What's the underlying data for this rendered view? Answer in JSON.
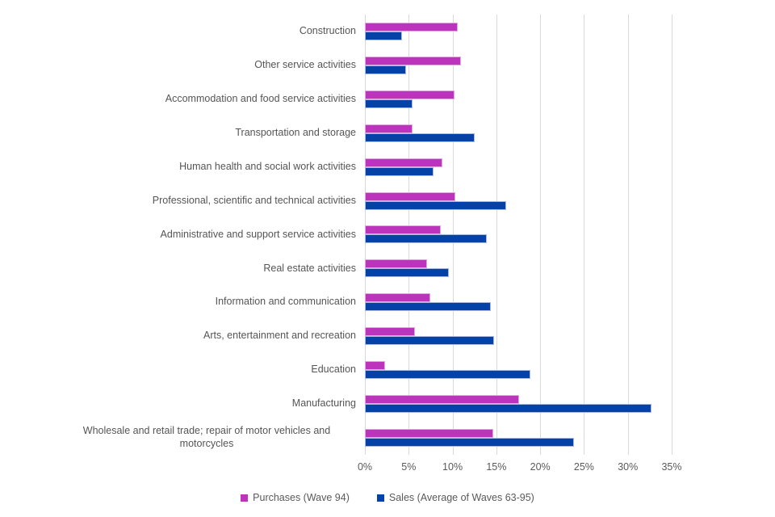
{
  "chart_data": {
    "type": "bar",
    "orientation": "horizontal",
    "title": "",
    "xlabel": "",
    "ylabel": "",
    "xlim": [
      0,
      35
    ],
    "grid": true,
    "legend_position": "bottom",
    "tick_values": [
      0,
      5,
      10,
      15,
      20,
      25,
      30,
      35
    ],
    "tick_labels": [
      "0%",
      "5%",
      "10%",
      "15%",
      "20%",
      "25%",
      "30%",
      "35%"
    ],
    "categories": [
      "Construction",
      "Other service activities",
      "Accommodation and food service activities",
      "Transportation and storage",
      "Human health and social work activities",
      "Professional, scientific and technical activities",
      "Administrative and support service activities",
      "Real estate activities",
      "Information and communication",
      "Arts, entertainment and recreation",
      "Education",
      "Manufacturing",
      "Wholesale and retail trade; repair of motor vehicles and motorcycles"
    ],
    "series": [
      {
        "name": "Purchases (Wave 94)",
        "color": "#bc34bc",
        "values": [
          10.6,
          11.0,
          10.2,
          5.4,
          8.8,
          10.3,
          8.7,
          7.1,
          7.5,
          5.7,
          2.3,
          17.6,
          14.6
        ]
      },
      {
        "name": "Sales (Average of Waves 63-95)",
        "color": "#0542a8",
        "values": [
          4.2,
          4.7,
          5.4,
          12.5,
          7.8,
          16.1,
          13.9,
          9.6,
          14.4,
          14.7,
          18.9,
          32.7,
          23.9
        ]
      }
    ]
  },
  "colors": {
    "gridline": "#d9d9d9",
    "axis_text": "#595959",
    "category_text": "#555555"
  }
}
